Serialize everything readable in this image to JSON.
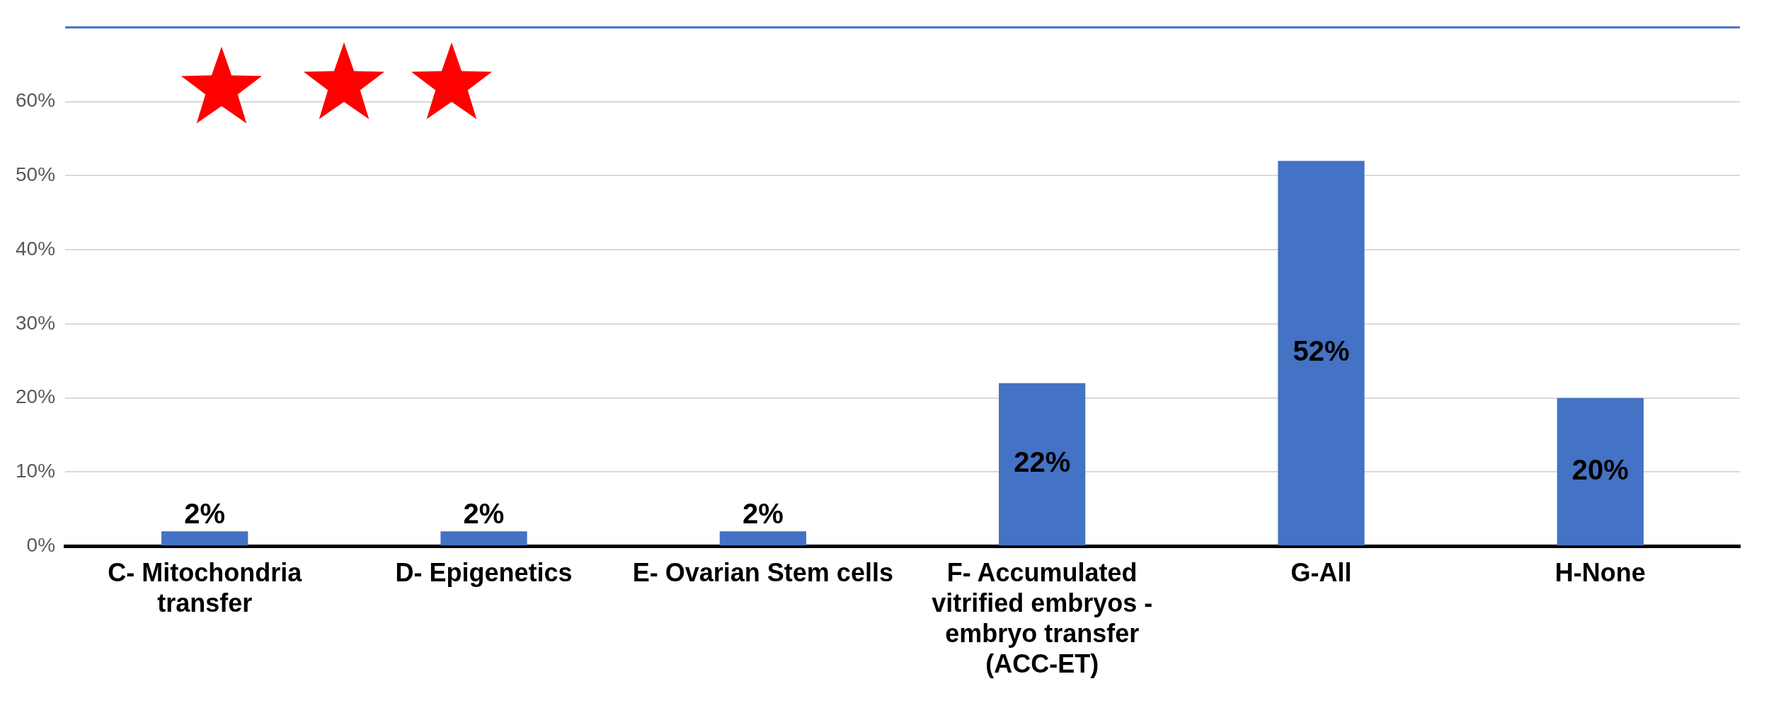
{
  "chart_data": {
    "type": "bar",
    "categories": [
      "C- Mitochondria transfer",
      "D- Epigenetics",
      "E- Ovarian Stem cells",
      "F- Accumulated vitrified embryos - embryo transfer (ACC-ET)",
      "G-All",
      "H-None"
    ],
    "values": [
      2,
      2,
      2,
      22,
      52,
      20
    ],
    "value_labels": [
      "2%",
      "2%",
      "2%",
      "22%",
      "52%",
      "20%"
    ],
    "color": "#4472c4",
    "ylim": [
      0,
      70
    ],
    "yticks": [
      {
        "value": 0,
        "label": "0%"
      },
      {
        "value": 10,
        "label": "10%"
      },
      {
        "value": 20,
        "label": "20%"
      },
      {
        "value": 30,
        "label": "30%"
      },
      {
        "value": 40,
        "label": "40%"
      },
      {
        "value": 50,
        "label": "50%"
      },
      {
        "value": 60,
        "label": "60%"
      }
    ],
    "grid": "y",
    "legend": false
  }
}
